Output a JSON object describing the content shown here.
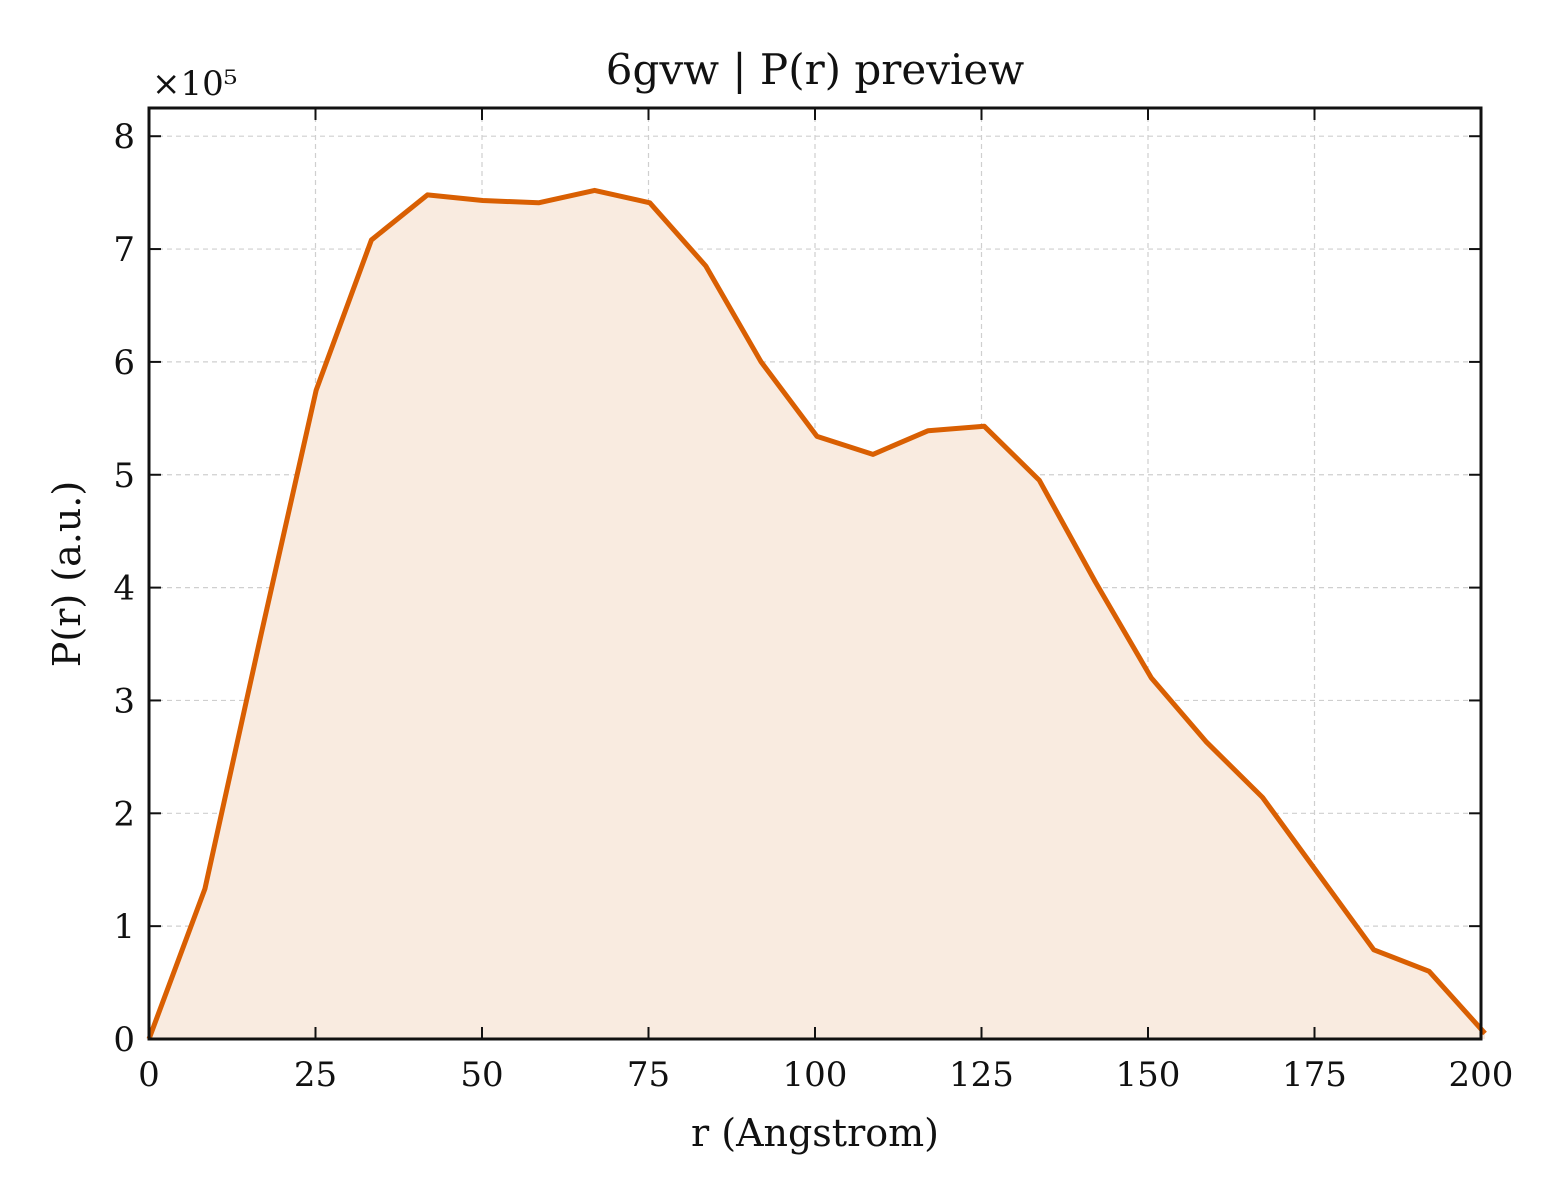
{
  "chart_data": {
    "type": "area",
    "title": "6gvw | P(r) preview",
    "xlabel": "r (Angstrom)",
    "ylabel": "P(r) (a.u.)",
    "y_offset_label": "×10⁵",
    "y_scale": 100000,
    "xlim": [
      0,
      200
    ],
    "ylim": [
      0,
      825000
    ],
    "x_ticks": [
      0,
      25,
      50,
      75,
      100,
      125,
      150,
      175,
      200
    ],
    "y_ticks": [
      0,
      1,
      2,
      3,
      4,
      5,
      6,
      7,
      8
    ],
    "grid": true,
    "line_color": "#d95f02",
    "fill_color": "#f9ebe0",
    "series": [
      {
        "x": [
          0,
          8.4,
          16.7,
          25.1,
          33.4,
          41.8,
          50.1,
          58.5,
          66.9,
          75.2,
          83.6,
          91.9,
          100.3,
          108.7,
          117.0,
          125.4,
          133.7,
          142.1,
          150.5,
          158.8,
          167.2,
          175.5,
          183.9,
          192.2,
          200.6
        ],
        "y": [
          0,
          133000,
          355000,
          575000,
          708000,
          748000,
          743000,
          741000,
          752000,
          741000,
          685000,
          600000,
          534000,
          518000,
          539000,
          543000,
          495000,
          405000,
          320000,
          263000,
          214000,
          147000,
          79000,
          60000,
          5000
        ]
      }
    ]
  }
}
